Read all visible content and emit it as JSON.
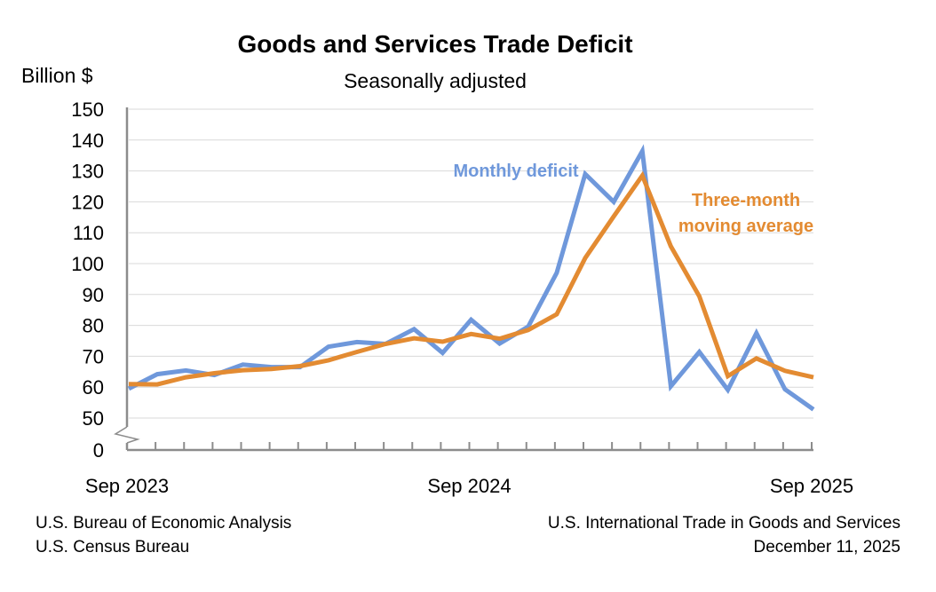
{
  "chart_data": {
    "type": "line",
    "title": "Goods and Services Trade Deficit",
    "subtitle": "Seasonally adjusted",
    "ylabel": "Billion $",
    "xlabel": "",
    "ylim": [
      50,
      150
    ],
    "y_axis_break": true,
    "y_ticks": [
      0,
      50,
      60,
      70,
      80,
      90,
      100,
      110,
      120,
      130,
      140,
      150
    ],
    "x": [
      "Sep 2023",
      "Oct 2023",
      "Nov 2023",
      "Dec 2023",
      "Jan 2024",
      "Feb 2024",
      "Mar 2024",
      "Apr 2024",
      "May 2024",
      "Jun 2024",
      "Jul 2024",
      "Aug 2024",
      "Sep 2024",
      "Oct 2024",
      "Nov 2024",
      "Dec 2024",
      "Jan 2025",
      "Feb 2025",
      "Mar 2025",
      "Apr 2025",
      "May 2025",
      "Jun 2025",
      "Jul 2025",
      "Aug 2025",
      "Sep 2025"
    ],
    "x_tick_labels": [
      "Sep 2023",
      "Sep 2024",
      "Sep 2025"
    ],
    "grid": true,
    "series": [
      {
        "name": "Monthly deficit",
        "color": "#6f98db",
        "values": [
          59.5,
          64.2,
          65.4,
          63.9,
          67.3,
          66.5,
          66.5,
          73.1,
          74.6,
          74.0,
          78.8,
          71.1,
          81.8,
          74.1,
          79.6,
          97.0,
          129.0,
          120.0,
          136.4,
          60.3,
          71.4,
          59.1,
          77.5,
          59.3,
          52.8
        ]
      },
      {
        "name": "Three-month moving average",
        "label_lines": [
          "Three-month",
          "moving average"
        ],
        "color": "#e38b32",
        "values": [
          61.0,
          60.9,
          63.2,
          64.5,
          65.5,
          65.9,
          66.8,
          68.7,
          71.4,
          74.0,
          75.8,
          74.7,
          77.2,
          75.7,
          78.5,
          83.6,
          101.8,
          115.3,
          128.5,
          105.6,
          89.4,
          63.6,
          69.3,
          65.3,
          63.2
        ]
      }
    ]
  },
  "footer": {
    "left": [
      "U.S. Bureau of Economic Analysis",
      "U.S. Census Bureau"
    ],
    "right": [
      "U.S. International Trade in Goods and Services",
      "December 11, 2025"
    ]
  }
}
